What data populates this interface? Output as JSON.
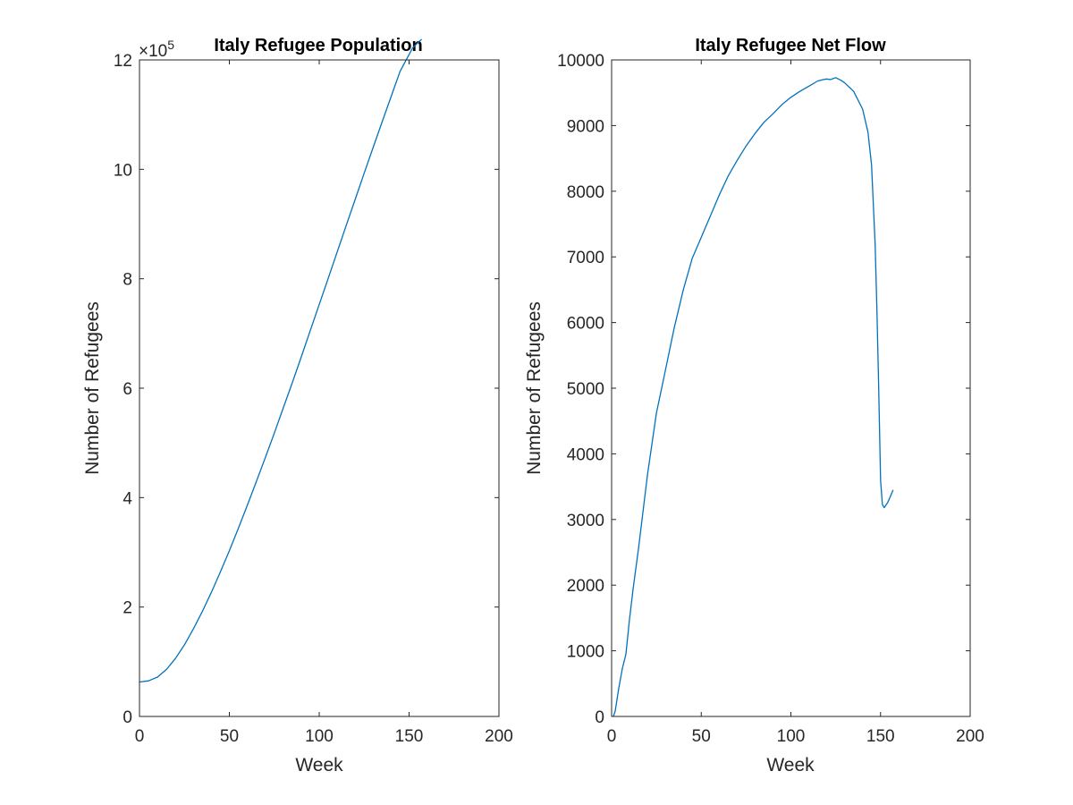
{
  "chart_data": [
    {
      "type": "line",
      "title": "Italy Refugee Population",
      "xlabel": "Week",
      "ylabel": "Number of Refugees",
      "xlim": [
        0,
        200
      ],
      "ylim": [
        0,
        1200000
      ],
      "xticks": [
        0,
        50,
        100,
        150,
        200
      ],
      "xtick_labels": [
        "0",
        "50",
        "100",
        "150",
        "200"
      ],
      "yticks": [
        0,
        200000,
        400000,
        600000,
        800000,
        1000000,
        1200000
      ],
      "ytick_labels": [
        "0",
        "2",
        "4",
        "6",
        "8",
        "10",
        "12"
      ],
      "y_exponent_prefix": "×10",
      "y_exponent_power": "5",
      "grid": false,
      "color": "#0072BD",
      "series": [
        {
          "x": [
            0,
            5,
            10,
            15,
            20,
            25,
            30,
            35,
            40,
            45,
            50,
            55,
            60,
            65,
            70,
            75,
            80,
            85,
            90,
            95,
            100,
            105,
            110,
            115,
            120,
            125,
            130,
            135,
            140,
            145,
            150,
            152,
            155,
            157
          ],
          "values": [
            63000,
            65000,
            72000,
            86000,
            106000,
            131000,
            160000,
            192000,
            227000,
            264000,
            303000,
            344000,
            386000,
            429000,
            473000,
            518000,
            564000,
            610000,
            657000,
            705000,
            753000,
            801000,
            849000,
            897000,
            945000,
            993000,
            1040000,
            1087000,
            1133000,
            1179000,
            1210000,
            1222000,
            1232000,
            1238000
          ]
        }
      ]
    },
    {
      "type": "line",
      "title": "Italy Refugee Net Flow",
      "xlabel": "Week",
      "ylabel": "Number of Refugees",
      "xlim": [
        0,
        200
      ],
      "ylim": [
        0,
        10000
      ],
      "xticks": [
        0,
        50,
        100,
        150,
        200
      ],
      "xtick_labels": [
        "0",
        "50",
        "100",
        "150",
        "200"
      ],
      "yticks": [
        0,
        1000,
        2000,
        3000,
        4000,
        5000,
        6000,
        7000,
        8000,
        9000,
        10000
      ],
      "ytick_labels": [
        "0",
        "1000",
        "2000",
        "3000",
        "4000",
        "5000",
        "6000",
        "7000",
        "8000",
        "9000",
        "10000"
      ],
      "grid": false,
      "color": "#0072BD",
      "series": [
        {
          "x": [
            1,
            2,
            4,
            6,
            8,
            10,
            12,
            15,
            20,
            25,
            30,
            35,
            40,
            45,
            50,
            55,
            60,
            65,
            70,
            75,
            80,
            85,
            90,
            95,
            100,
            105,
            110,
            115,
            118,
            120,
            122,
            125,
            128,
            130,
            135,
            140,
            143,
            145,
            147,
            148,
            149,
            150,
            151,
            152,
            154,
            155,
            157
          ],
          "values": [
            0,
            80,
            430,
            730,
            950,
            1480,
            1950,
            2560,
            3680,
            4620,
            5270,
            5930,
            6500,
            6980,
            7300,
            7620,
            7940,
            8230,
            8470,
            8690,
            8880,
            9050,
            9180,
            9320,
            9430,
            9520,
            9600,
            9680,
            9700,
            9710,
            9700,
            9730,
            9690,
            9650,
            9520,
            9250,
            8900,
            8400,
            7200,
            6200,
            5000,
            3600,
            3230,
            3180,
            3260,
            3320,
            3450
          ]
        }
      ]
    }
  ]
}
